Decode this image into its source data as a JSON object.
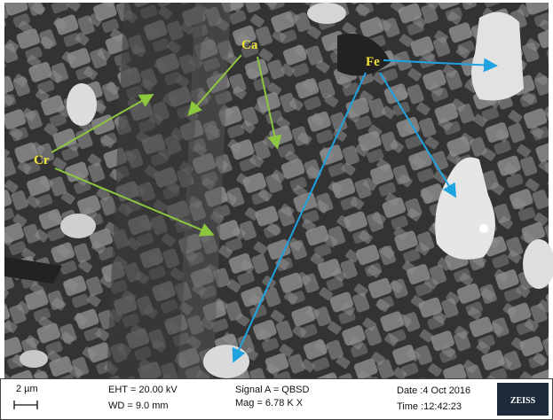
{
  "labels": {
    "ca": "Ca",
    "fe": "Fe",
    "cr": "Cr"
  },
  "info_bar": {
    "scale": "2 µm",
    "eht": "EHT = 20.00 kV",
    "wd": "WD = 9.0 mm",
    "signal": "Signal A = QBSD",
    "mag": "Mag = 6.78 K X",
    "date": "Date :4 Oct 2016",
    "time": "Time :12:42:23",
    "logo": "ZEISS"
  }
}
